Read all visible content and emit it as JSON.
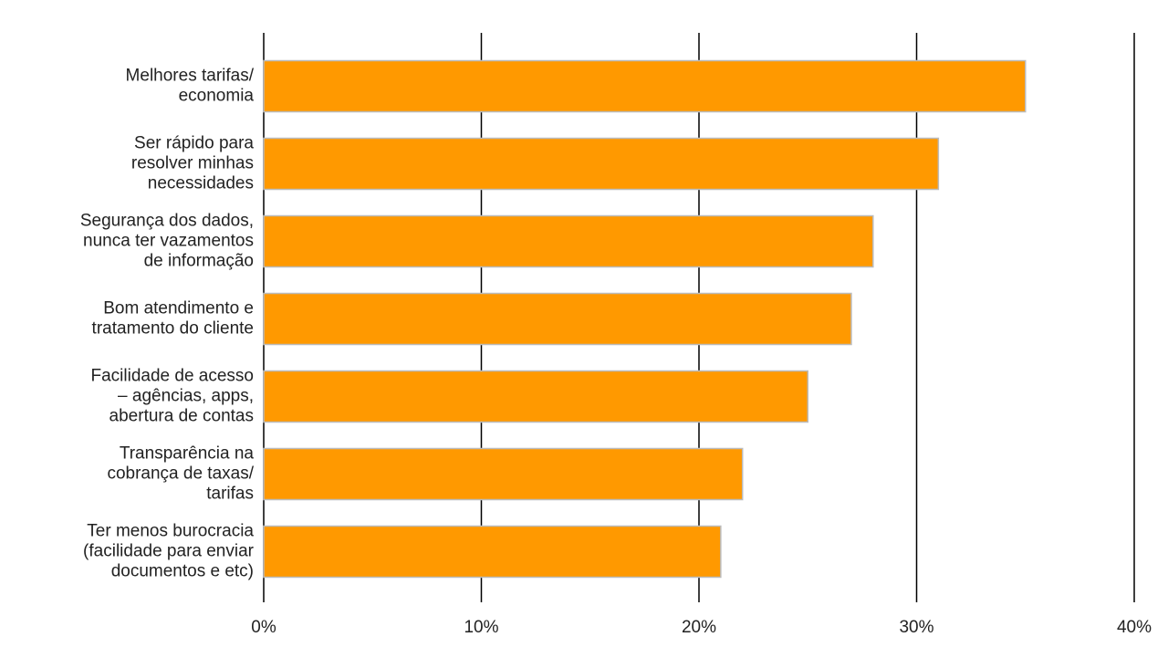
{
  "chart_data": {
    "type": "bar",
    "orientation": "horizontal",
    "categories": [
      "Melhores tarifas/\neconomia",
      "Ser rápido para\nresolver minhas\nnecessidades",
      "Segurança dos dados,\nnunca ter vazamentos\nde informação",
      "Bom atendimento e\ntratamento do cliente",
      "Facilidade de acesso\n– agências, apps,\nabertura de contas",
      "Transparência na\ncobrança de taxas/\ntarifas",
      "Ter menos burocracia\n(facilidade para enviar\ndocumentos e etc)"
    ],
    "values": [
      35,
      31,
      28,
      27,
      25,
      22,
      21
    ],
    "color": "#ff9900",
    "xlim": [
      0,
      40
    ],
    "xticks": [
      {
        "value": 0,
        "label": "0%"
      },
      {
        "value": 10,
        "label": "10%"
      },
      {
        "value": 20,
        "label": "20%"
      },
      {
        "value": 30,
        "label": "30%"
      },
      {
        "value": 40,
        "label": "40%"
      }
    ],
    "grid": true
  }
}
